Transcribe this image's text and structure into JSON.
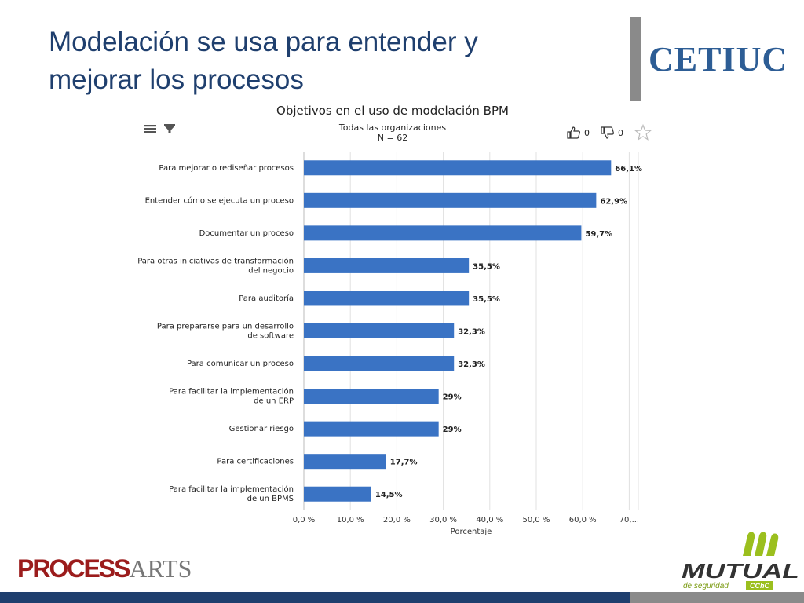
{
  "slide": {
    "title_line1": "Modelación se usa para entender y",
    "title_line2": "mejorar los procesos",
    "logo_text": "CETIUC"
  },
  "toolbar": {
    "menu_icon": "menu-icon",
    "filter_icon": "filter-icon",
    "likes": "0",
    "dislikes": "0"
  },
  "footer": {
    "process_text": "PROCESS",
    "arts_text": "ARTS",
    "mutual_text": "MUTUAL",
    "mutual_sub": "de seguridad",
    "mutual_tag": "CChC"
  },
  "colors": {
    "bar": "#3a73c4",
    "title": "#1f3f6e",
    "grid": "#e0e0e0",
    "mutual_green": "#9bbf1e"
  },
  "chart_data": {
    "type": "bar",
    "orientation": "horizontal",
    "title": "Objetivos en el uso de modelación BPM",
    "subtitle_line1": "Todas las organizaciones",
    "subtitle_line2": "N = 62",
    "xlabel": "Porcentaje",
    "xlim": [
      0,
      70
    ],
    "x_ticks": [
      "0,0 %",
      "10,0 %",
      "20,0 %",
      "30,0 %",
      "40,0 %",
      "50,0 %",
      "60,0 %",
      "70,..."
    ],
    "grid": true,
    "categories": [
      [
        "Para mejorar o rediseñar procesos"
      ],
      [
        "Entender cómo se ejecuta un proceso"
      ],
      [
        "Documentar un proceso"
      ],
      [
        "Para otras iniciativas de transformación",
        "del negocio"
      ],
      [
        "Para auditoría"
      ],
      [
        "Para prepararse para un desarrollo",
        "de software"
      ],
      [
        "Para comunicar un proceso"
      ],
      [
        "Para facilitar la implementación",
        "de un ERP"
      ],
      [
        "Gestionar riesgo"
      ],
      [
        "Para certificaciones"
      ],
      [
        "Para facilitar la implementación",
        "de un BPMS"
      ]
    ],
    "values": [
      66.1,
      62.9,
      59.7,
      35.5,
      35.5,
      32.3,
      32.3,
      29,
      29,
      17.7,
      14.5
    ],
    "value_labels": [
      "66,1%",
      "62,9%",
      "59,7%",
      "35,5%",
      "35,5%",
      "32,3%",
      "32,3%",
      "29%",
      "29%",
      "17,7%",
      "14,5%"
    ]
  }
}
